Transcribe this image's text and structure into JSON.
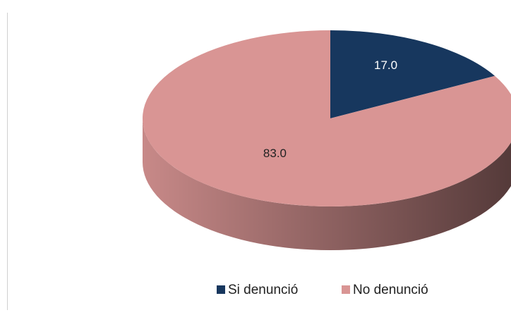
{
  "chart_data": {
    "type": "pie",
    "categories": [
      "Si denunció",
      "No denunció"
    ],
    "values": [
      17,
      83
    ],
    "value_labels": [
      "17.0",
      "83.0"
    ],
    "colors": [
      "#17375e",
      "#d99594"
    ],
    "legend": "bottom"
  }
}
